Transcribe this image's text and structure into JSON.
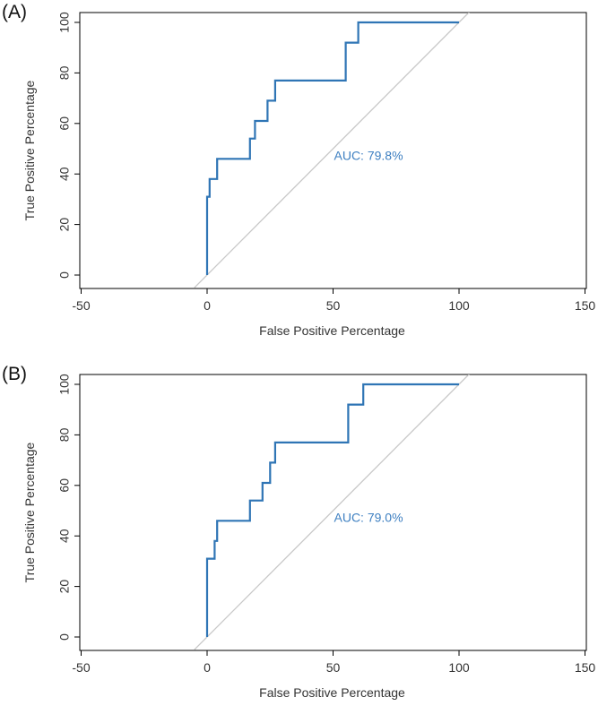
{
  "chart_data": [
    {
      "type": "line",
      "panel_label": "(A)",
      "xlabel": "False Positive Percentage",
      "ylabel": "True Positive Percentage",
      "xlim": [
        -50,
        150
      ],
      "ylim": [
        0,
        100
      ],
      "xticks": [
        "-50",
        "0",
        "50",
        "100",
        "150"
      ],
      "yticks": [
        "0",
        "20",
        "40",
        "60",
        "80",
        "100"
      ],
      "annotation": "AUC: 79.8%",
      "grid": false,
      "series": [
        {
          "color": "#2f75b5",
          "x": [
            0,
            0,
            1,
            1,
            4,
            4,
            17,
            17,
            19,
            19,
            24,
            24,
            27,
            27,
            55,
            55,
            60,
            60,
            100
          ],
          "y": [
            0,
            31,
            31,
            38,
            38,
            46,
            46,
            54,
            54,
            61,
            61,
            69,
            69,
            77,
            77,
            92,
            92,
            100,
            100
          ]
        },
        {
          "color": "#c8c8c8",
          "x": [
            -5,
            105
          ],
          "y": [
            -5,
            105
          ]
        }
      ]
    },
    {
      "type": "line",
      "panel_label": "(B)",
      "xlabel": "False Positive Percentage",
      "ylabel": "True Positive Percentage",
      "xlim": [
        -50,
        150
      ],
      "ylim": [
        0,
        100
      ],
      "xticks": [
        "-50",
        "0",
        "50",
        "100",
        "150"
      ],
      "yticks": [
        "0",
        "20",
        "40",
        "60",
        "80",
        "100"
      ],
      "annotation": "AUC: 79.0%",
      "grid": false,
      "series": [
        {
          "color": "#2f75b5",
          "x": [
            0,
            0,
            3,
            3,
            4,
            4,
            17,
            17,
            22,
            22,
            25,
            25,
            27,
            27,
            56,
            56,
            62,
            62,
            100
          ],
          "y": [
            0,
            31,
            31,
            38,
            38,
            46,
            46,
            54,
            54,
            61,
            61,
            69,
            69,
            77,
            77,
            92,
            92,
            100,
            100
          ]
        },
        {
          "color": "#c8c8c8",
          "x": [
            -5,
            105
          ],
          "y": [
            -5,
            105
          ]
        }
      ]
    }
  ]
}
